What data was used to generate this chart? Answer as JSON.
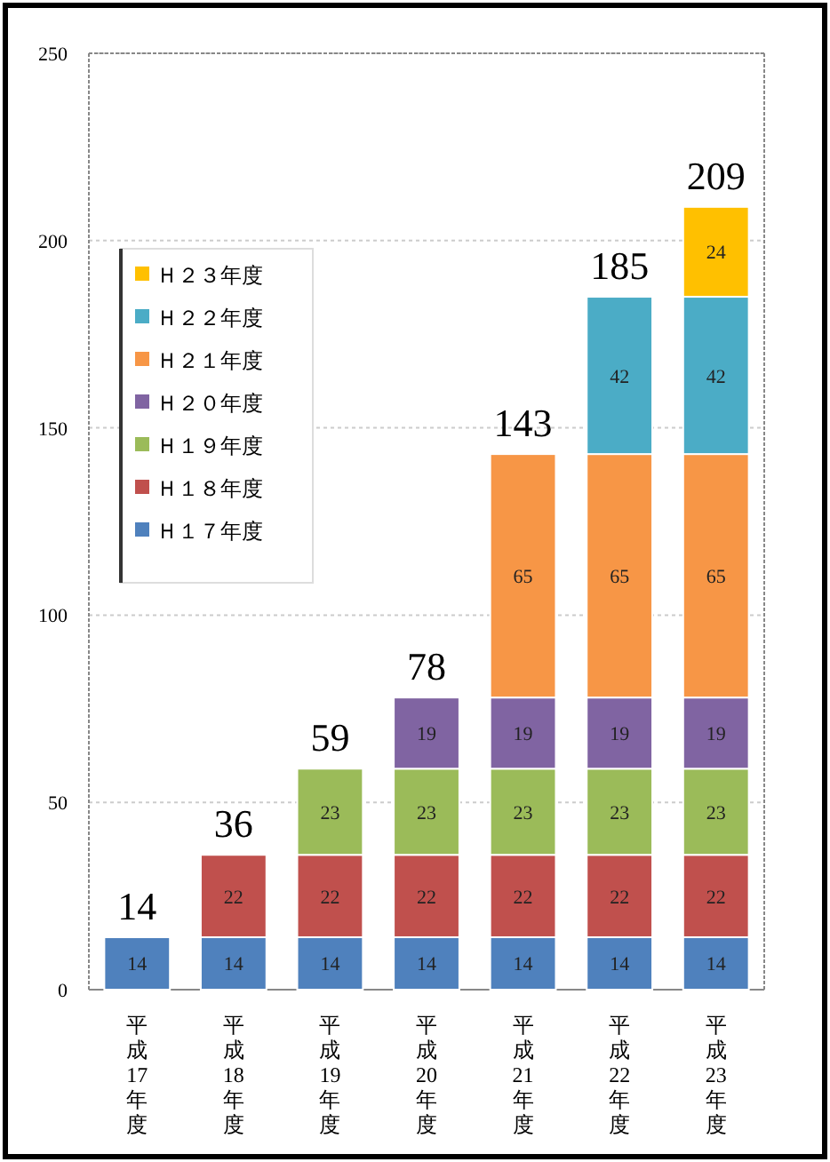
{
  "chart_data": {
    "type": "bar",
    "stacked": true,
    "categories": [
      "平成17年度",
      "平成18年度",
      "平成19年度",
      "平成20年度",
      "平成21年度",
      "平成22年度",
      "平成23年度"
    ],
    "series": [
      {
        "name": "Ｈ１７年度",
        "color": "#4f81bd",
        "values": [
          14,
          14,
          14,
          14,
          14,
          14,
          14
        ]
      },
      {
        "name": "Ｈ１８年度",
        "color": "#c0504d",
        "values": [
          null,
          22,
          22,
          22,
          22,
          22,
          22
        ]
      },
      {
        "name": "Ｈ１９年度",
        "color": "#9bbb59",
        "values": [
          null,
          null,
          23,
          23,
          23,
          23,
          23
        ]
      },
      {
        "name": "Ｈ２０年度",
        "color": "#8064a2",
        "values": [
          null,
          null,
          null,
          19,
          19,
          19,
          19
        ]
      },
      {
        "name": "Ｈ２１年度",
        "color": "#f79646",
        "values": [
          null,
          null,
          null,
          null,
          65,
          65,
          65
        ]
      },
      {
        "name": "Ｈ２２年度",
        "color": "#4bacc6",
        "values": [
          null,
          null,
          null,
          null,
          null,
          42,
          42
        ]
      },
      {
        "name": "Ｈ２３年度",
        "color": "#ffc000",
        "values": [
          null,
          null,
          null,
          null,
          null,
          null,
          24
        ]
      }
    ],
    "totals": [
      "14",
      "36",
      "59",
      "78",
      "143",
      "185",
      "209"
    ],
    "data_labels": true,
    "ylim": [
      0,
      250
    ],
    "yticks": [
      0,
      50,
      100,
      150,
      200,
      250
    ],
    "grid": "y",
    "legend": "top left"
  }
}
